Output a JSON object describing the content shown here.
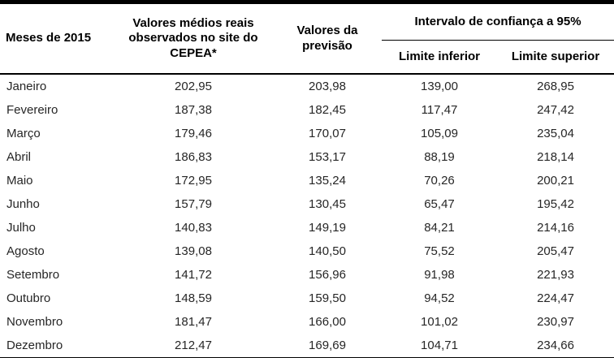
{
  "table": {
    "title_semantic": "Valores observados e previstos com intervalo de confianca - 2015",
    "style": {
      "border_color": "#000000",
      "header_text_color": "#000000",
      "body_text_color": "#262626",
      "background_color": "#ffffff"
    },
    "headers": {
      "months": "Meses de 2015",
      "observed": "Valores médios reais observados no site do CEPEA*",
      "forecast": "Valores da previsão",
      "interval": "Intervalo de confiança a 95%",
      "lower": "Limite inferior",
      "upper": "Limite superior"
    },
    "rows": [
      {
        "month": "Janeiro",
        "observed": "202,95",
        "forecast": "203,98",
        "lower": "139,00",
        "upper": "268,95"
      },
      {
        "month": "Fevereiro",
        "observed": "187,38",
        "forecast": "182,45",
        "lower": "117,47",
        "upper": "247,42"
      },
      {
        "month": "Março",
        "observed": "179,46",
        "forecast": "170,07",
        "lower": "105,09",
        "upper": "235,04"
      },
      {
        "month": "Abril",
        "observed": "186,83",
        "forecast": "153,17",
        "lower": "88,19",
        "upper": "218,14"
      },
      {
        "month": "Maio",
        "observed": "172,95",
        "forecast": "135,24",
        "lower": "70,26",
        "upper": "200,21"
      },
      {
        "month": "Junho",
        "observed": "157,79",
        "forecast": "130,45",
        "lower": "65,47",
        "upper": "195,42"
      },
      {
        "month": "Julho",
        "observed": "140,83",
        "forecast": "149,19",
        "lower": "84,21",
        "upper": "214,16"
      },
      {
        "month": "Agosto",
        "observed": "139,08",
        "forecast": "140,50",
        "lower": "75,52",
        "upper": "205,47"
      },
      {
        "month": "Setembro",
        "observed": "141,72",
        "forecast": "156,96",
        "lower": "91,98",
        "upper": "221,93"
      },
      {
        "month": "Outubro",
        "observed": "148,59",
        "forecast": "159,50",
        "lower": "94,52",
        "upper": "224,47"
      },
      {
        "month": "Novembro",
        "observed": "181,47",
        "forecast": "166,00",
        "lower": "101,02",
        "upper": "230,97"
      },
      {
        "month": "Dezembro",
        "observed": "212,47",
        "forecast": "169,69",
        "lower": "104,71",
        "upper": "234,66"
      }
    ]
  }
}
